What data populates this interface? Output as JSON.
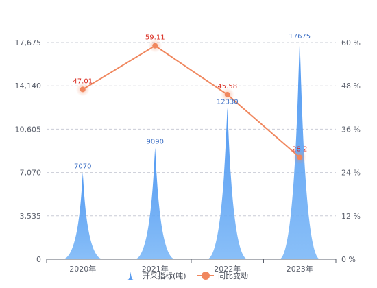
{
  "chart_data": {
    "type": "bar",
    "categories": [
      "2020年",
      "2021年",
      "2022年",
      "2023年"
    ],
    "series": [
      {
        "name": "开采指标(吨)",
        "type": "bar",
        "axis": "left",
        "values": [
          7070,
          9090,
          12330,
          17675
        ],
        "color": "#5b9df0",
        "label_color": "#3d6fc4"
      },
      {
        "name": "同比变动",
        "type": "line",
        "axis": "right",
        "values": [
          47.01,
          59.11,
          45.58,
          28.2
        ],
        "color": "#f0875e",
        "label_color": "#d9281c"
      }
    ],
    "y_left": {
      "ticks": [
        "0",
        "3,535",
        "7,070",
        "10,605",
        "14,140",
        "17,675"
      ],
      "ylim": [
        0,
        17675
      ]
    },
    "y_right": {
      "ticks": [
        "0 %",
        "12 %",
        "24 %",
        "36 %",
        "48 %",
        "60 %"
      ],
      "ylim": [
        0,
        60
      ]
    },
    "legend_position": "bottom",
    "grid": true
  }
}
